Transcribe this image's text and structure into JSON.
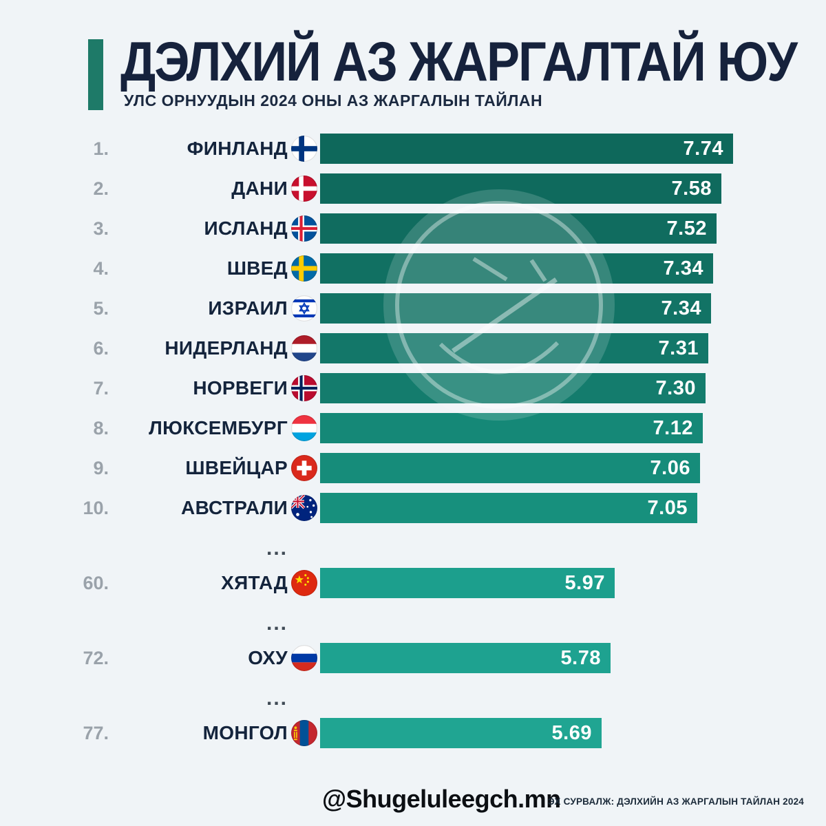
{
  "header": {
    "title": "ДЭЛХИЙ АЗ ЖАРГАЛТАЙ ЮУ",
    "subtitle": "УЛС ОРНУУДЫН 2024 ОНЫ АЗ ЖАРГАЛЫН ТАЙЛАН"
  },
  "chart_data": {
    "type": "bar",
    "title": "ДЭЛХИЙ АЗ ЖАРГАЛТАЙ ЮУ",
    "subtitle": "УЛС ОРНУУДЫН 2024 ОНЫ АЗ ЖАРГАЛЫН ТАЙЛАН",
    "orientation": "horizontal",
    "value_range": [
      0,
      7.74
    ],
    "grid": false,
    "legend": false,
    "gap_label": "...",
    "accent_color": "#1e7a68",
    "background_color": "#f0f4f7",
    "rows": [
      {
        "type": "row",
        "rank": "1.",
        "country": "ФИНЛАНД",
        "flag": "finland",
        "value": 7.74,
        "display": "7.74",
        "color": "#0e685b",
        "bar_len": 600
      },
      {
        "type": "row",
        "rank": "2.",
        "country": "ДАНИ",
        "flag": "denmark",
        "value": 7.58,
        "display": "7.58",
        "color": "#0f6a5d",
        "bar_len": 583
      },
      {
        "type": "row",
        "rank": "3.",
        "country": "ИСЛАНД",
        "flag": "iceland",
        "value": 7.52,
        "display": "7.52",
        "color": "#106c5f",
        "bar_len": 576
      },
      {
        "type": "row",
        "rank": "4.",
        "country": "ШВЕД",
        "flag": "sweden",
        "value": 7.34,
        "display": "7.34",
        "color": "#117062",
        "bar_len": 571
      },
      {
        "type": "row",
        "rank": "5.",
        "country": "ИЗРАИЛ",
        "flag": "israel",
        "value": 7.34,
        "display": "7.34",
        "color": "#127365",
        "bar_len": 568
      },
      {
        "type": "row",
        "rank": "6.",
        "country": "НИДЕРЛАНД",
        "flag": "netherlands",
        "value": 7.31,
        "display": "7.31",
        "color": "#137769",
        "bar_len": 564
      },
      {
        "type": "row",
        "rank": "7.",
        "country": "НОРВЕГИ",
        "flag": "norway",
        "value": 7.3,
        "display": "7.30",
        "color": "#147c6d",
        "bar_len": 560
      },
      {
        "type": "row",
        "rank": "8.",
        "country": "ЛЮКСЕМБУРГ",
        "flag": "luxembourg",
        "value": 7.12,
        "display": "7.12",
        "color": "#158877",
        "bar_len": 556
      },
      {
        "type": "row",
        "rank": "9.",
        "country": "ШВЕЙЦАР",
        "flag": "switzerland",
        "value": 7.06,
        "display": "7.06",
        "color": "#168c7a",
        "bar_len": 552
      },
      {
        "type": "row",
        "rank": "10.",
        "country": "АВСТРАЛИ",
        "flag": "australia",
        "value": 7.05,
        "display": "7.05",
        "color": "#17907d",
        "bar_len": 548
      },
      {
        "type": "gap"
      },
      {
        "type": "row",
        "rank": "60.",
        "country": "ХЯТАД",
        "flag": "china",
        "value": 5.97,
        "display": "5.97",
        "color": "#1c9f8d",
        "bar_len": 428
      },
      {
        "type": "gap"
      },
      {
        "type": "row",
        "rank": "72.",
        "country": "ОХУ",
        "flag": "russia",
        "value": 5.78,
        "display": "5.78",
        "color": "#1ea290",
        "bar_len": 422
      },
      {
        "type": "gap"
      },
      {
        "type": "row",
        "rank": "77.",
        "country": "МОНГОЛ",
        "flag": "mongolia",
        "value": 5.69,
        "display": "5.69",
        "color": "#20a592",
        "bar_len": 409
      }
    ]
  },
  "footer": {
    "handle": "@Shugeluleegch.mn",
    "source": "ЭХ СУРВАЛЖ: ДЭЛХИЙН АЗ ЖАРГАЛЫН ТАЙЛАН 2024"
  }
}
